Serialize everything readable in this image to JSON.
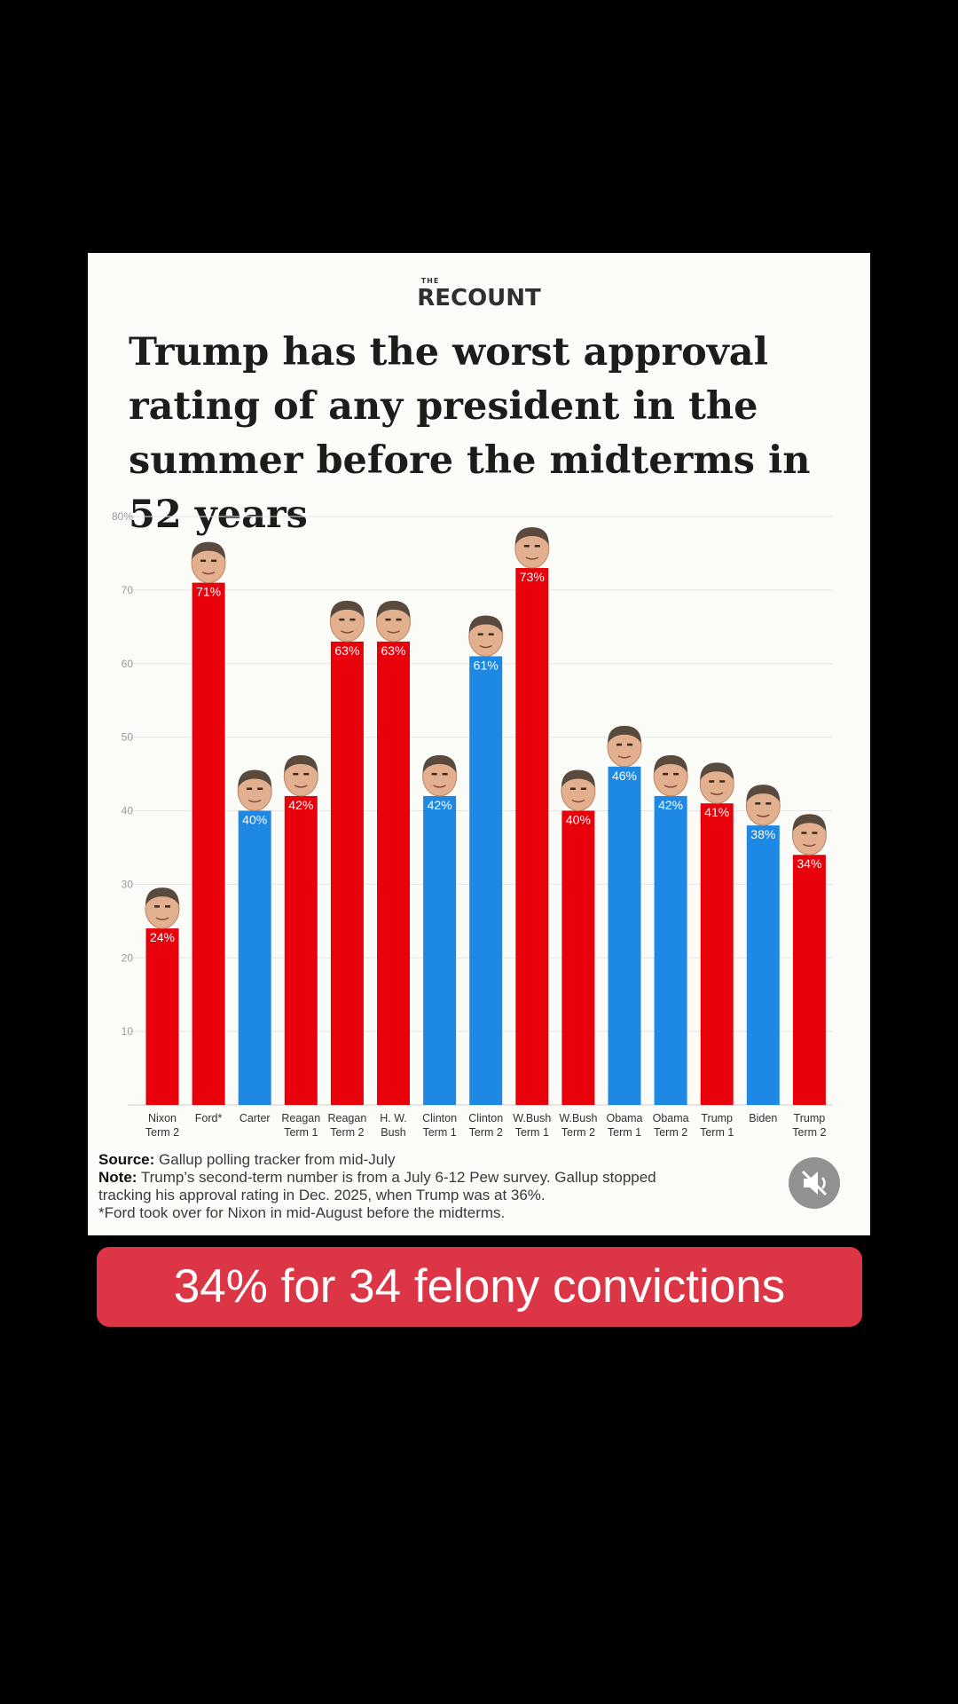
{
  "brand": {
    "small": "THE",
    "name": "RECOUNT"
  },
  "title": "Trump has the worst approval rating of any president in the summer before the midterms in 52 years",
  "chart_data": {
    "type": "bar",
    "ylim": [
      0,
      80
    ],
    "ticks": [
      {
        "value": 80,
        "label": "80%"
      },
      {
        "value": 70,
        "label": "70"
      },
      {
        "value": 60,
        "label": "60"
      },
      {
        "value": 50,
        "label": "50"
      },
      {
        "value": 40,
        "label": "40"
      },
      {
        "value": 30,
        "label": "30"
      },
      {
        "value": 20,
        "label": "20"
      },
      {
        "value": 10,
        "label": "10"
      }
    ],
    "grid": true,
    "bars": [
      {
        "line1": "Nixon",
        "line2": "Term 2",
        "value": 24,
        "label": "24%",
        "party": "R"
      },
      {
        "line1": "Ford*",
        "line2": "",
        "value": 71,
        "label": "71%",
        "party": "R"
      },
      {
        "line1": "Carter",
        "line2": "",
        "value": 40,
        "label": "40%",
        "party": "D"
      },
      {
        "line1": "Reagan",
        "line2": "Term 1",
        "value": 42,
        "label": "42%",
        "party": "R"
      },
      {
        "line1": "Reagan",
        "line2": "Term 2",
        "value": 63,
        "label": "63%",
        "party": "R"
      },
      {
        "line1": "H. W.",
        "line2": "Bush",
        "value": 63,
        "label": "63%",
        "party": "R"
      },
      {
        "line1": "Clinton",
        "line2": "Term 1",
        "value": 42,
        "label": "42%",
        "party": "D"
      },
      {
        "line1": "Clinton",
        "line2": "Term 2",
        "value": 61,
        "label": "61%",
        "party": "D"
      },
      {
        "line1": "W.Bush",
        "line2": "Term 1",
        "value": 73,
        "label": "73%",
        "party": "R"
      },
      {
        "line1": "W.Bush",
        "line2": "Term 2",
        "value": 40,
        "label": "40%",
        "party": "R"
      },
      {
        "line1": "Obama",
        "line2": "Term 1",
        "value": 46,
        "label": "46%",
        "party": "D"
      },
      {
        "line1": "Obama",
        "line2": "Term 2",
        "value": 42,
        "label": "42%",
        "party": "D"
      },
      {
        "line1": "Trump",
        "line2": "Term 1",
        "value": 41,
        "label": "41%",
        "party": "R"
      },
      {
        "line1": "Biden",
        "line2": "",
        "value": 38,
        "label": "38%",
        "party": "D"
      },
      {
        "line1": "Trump",
        "line2": "Term 2",
        "value": 34,
        "label": "34%",
        "party": "R"
      }
    ],
    "colors": {
      "R": "#e8000b",
      "D": "#1e88e5"
    }
  },
  "notes": {
    "source_label": "Source:",
    "source_text": "Gallup polling tracker from mid-July",
    "note_label": "Note:",
    "note_text": "Trump’s second-term number is from a July 6-12 Pew survey. Gallup stopped tracking his approval rating in Dec. 2025, when Trump was at 36%.",
    "footnote": "*Ford took over for Nixon in mid-August before the midterms."
  },
  "caption": "34% for 34 felony convictions",
  "icons": {
    "mute": "muted-speaker-icon"
  }
}
